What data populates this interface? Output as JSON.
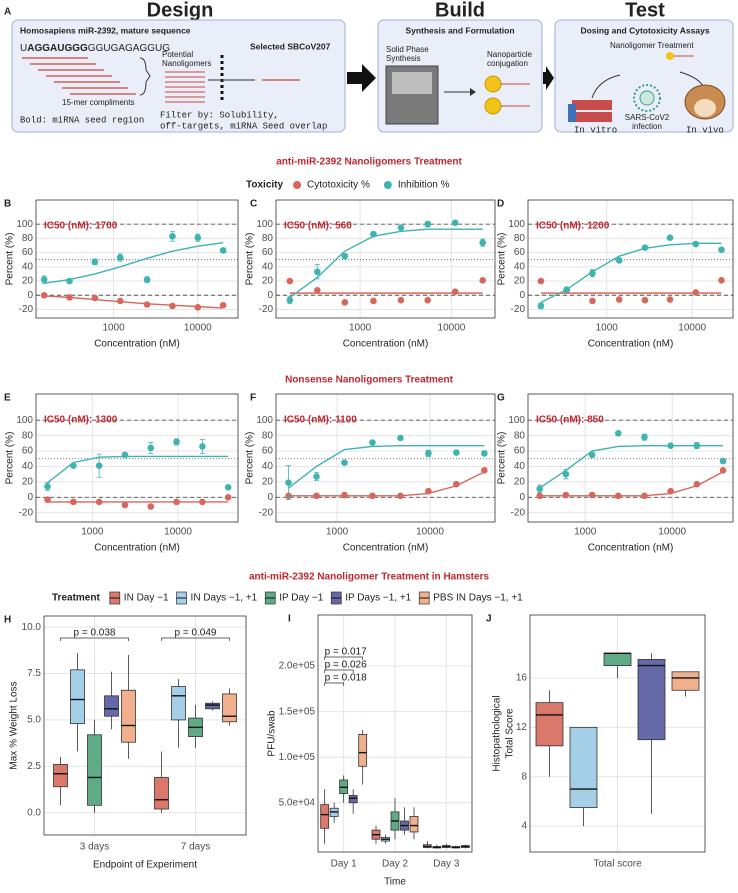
{
  "panel_a": {
    "panel": "A",
    "design": {
      "heading": "Design",
      "title": "Homosapiens miR-2392, mature sequence",
      "sequence": {
        "prefix": "U",
        "seed": "AGGAUGGG",
        "suffix": "GGUGAGAGGUG"
      },
      "compliments": "15-mer compliments",
      "note": "Bold: miRNA seed region",
      "potential": [
        "Potential",
        "Nanoligomers"
      ],
      "selected": "Selected SBCoV207",
      "filter": [
        "Filter by: Solubility,",
        "off-targets, miRNA Seed overlap"
      ]
    },
    "build": {
      "heading": "Build",
      "title": "Synthesis and Formulation",
      "synthesis": [
        "Solid Phase",
        "Synthesis"
      ],
      "conjugation": [
        "Nanoparticle",
        "conjugation"
      ]
    },
    "test": {
      "heading": "Test",
      "title": "Dosing and Cytotoxicity Assays",
      "treatment": "Nanoligomer Treatment",
      "in_vitro": "In vitro",
      "infection": [
        "SARS-CoV2",
        "infection"
      ],
      "in_vivo": "In vivo"
    }
  },
  "sections": [
    {
      "title": "anti-miR-2392 Nanoligomers Treatment",
      "legend_title": "Toxicity"
    },
    {
      "title": "Nonsense Nanoligomers Treatment"
    },
    {
      "title": "anti-miR-2392 Nanoligomer Treatment in Hamsters",
      "legend_title": "Treatment"
    }
  ],
  "chart_data": [
    {
      "type": "dose",
      "panel": "B",
      "ic50_label": "IC50 (nM): 1700",
      "x_label": "Concentration (nM)",
      "y_label": "Percent (%)",
      "log_x": true,
      "xlim": [
        120,
        30000
      ],
      "xticks": [
        1000,
        10000
      ],
      "ylim": [
        -32,
        134
      ],
      "yticks": [
        -20,
        0,
        20,
        40,
        60,
        80,
        100
      ],
      "reference_lines": [
        {
          "value": 0,
          "style": "dashed"
        },
        {
          "value": 50,
          "style": "dotted"
        },
        {
          "value": 100,
          "style": "dashed"
        }
      ],
      "x": [
        150,
        300,
        600,
        1200,
        2500,
        5000,
        10000,
        20000
      ],
      "series": [
        {
          "name": "Cytotoxicity %",
          "color": "#d9665b",
          "values": [
            0,
            -3,
            -4,
            -8,
            -13,
            -15,
            -17,
            -14
          ],
          "fit": [
            -1,
            -3,
            -6,
            -9,
            -12,
            -14,
            -16,
            -18
          ]
        },
        {
          "name": "Inhibition %",
          "color": "#3fb3b0",
          "values": [
            22,
            20,
            47,
            53,
            22,
            83,
            81,
            63
          ],
          "errors": [
            5,
            3,
            4,
            5,
            4,
            7,
            5,
            3
          ],
          "fit": [
            17,
            22,
            30,
            40,
            52,
            62,
            69,
            74
          ]
        }
      ]
    },
    {
      "type": "dose",
      "panel": "C",
      "ic50_label": "IC50 (nM): 560",
      "x_label": "Concentration (nM)",
      "y_label": "Percent (%)",
      "log_x": true,
      "xlim": [
        120,
        30000
      ],
      "xticks": [
        1000,
        10000
      ],
      "ylim": [
        -32,
        134
      ],
      "yticks": [
        -20,
        0,
        20,
        40,
        60,
        80,
        100
      ],
      "reference_lines": [
        {
          "value": 0,
          "style": "dashed"
        },
        {
          "value": 50,
          "style": "dotted"
        },
        {
          "value": 100,
          "style": "dashed"
        }
      ],
      "x": [
        170,
        340,
        680,
        1400,
        2800,
        5500,
        11000,
        22000
      ],
      "series": [
        {
          "name": "Cytotoxicity %",
          "color": "#d9665b",
          "values": [
            20,
            7,
            -10,
            -8,
            -7,
            -7,
            5,
            21
          ],
          "fit": [
            3,
            3,
            3,
            3,
            3,
            3,
            3,
            3
          ]
        },
        {
          "name": "Inhibition %",
          "color": "#3fb3b0",
          "values": [
            -7,
            33,
            55,
            86,
            95,
            100,
            102,
            74
          ],
          "errors": [
            5,
            10,
            3,
            3,
            2,
            4,
            2,
            5
          ],
          "fit": [
            -3,
            25,
            62,
            83,
            90,
            93,
            93,
            93
          ]
        }
      ]
    },
    {
      "type": "dose",
      "panel": "D",
      "ic50_label": "IC50 (nM): 1200",
      "x_label": "Concentration (nM)",
      "y_label": "Percent (%)",
      "log_x": true,
      "xlim": [
        120,
        30000
      ],
      "xticks": [
        1000,
        10000
      ],
      "ylim": [
        -32,
        134
      ],
      "yticks": [
        -20,
        0,
        20,
        40,
        60,
        80,
        100
      ],
      "reference_lines": [
        {
          "value": 0,
          "style": "dashed"
        },
        {
          "value": 50,
          "style": "dotted"
        },
        {
          "value": 100,
          "style": "dashed"
        }
      ],
      "x": [
        170,
        340,
        680,
        1400,
        2800,
        5500,
        11000,
        22000
      ],
      "series": [
        {
          "name": "Cytotoxicity %",
          "color": "#d9665b",
          "values": [
            20,
            7,
            -8,
            -6,
            -7,
            -6,
            4,
            21
          ],
          "fit": [
            3,
            3,
            3,
            3,
            3,
            3,
            3,
            3
          ]
        },
        {
          "name": "Inhibition %",
          "color": "#3fb3b0",
          "values": [
            -15,
            8,
            31,
            49,
            67,
            81,
            72,
            64
          ],
          "errors": [
            4,
            2,
            5,
            3,
            3,
            2,
            2,
            2
          ],
          "fit": [
            -10,
            8,
            33,
            55,
            66,
            71,
            73,
            73
          ]
        }
      ]
    },
    {
      "type": "dose",
      "panel": "E",
      "ic50_label": "IC50 (nM): 1300",
      "x_label": "Concentration (nM)",
      "y_label": "Percent (%)",
      "log_x": true,
      "xlim": [
        220,
        50000
      ],
      "xticks": [
        1000,
        10000
      ],
      "ylim": [
        -32,
        134
      ],
      "yticks": [
        -20,
        0,
        20,
        40,
        60,
        80,
        100
      ],
      "reference_lines": [
        {
          "value": 0,
          "style": "dashed"
        },
        {
          "value": 50,
          "style": "dotted"
        },
        {
          "value": 100,
          "style": "dashed"
        }
      ],
      "x": [
        300,
        600,
        1200,
        2400,
        4800,
        9600,
        19200,
        38400
      ],
      "series": [
        {
          "name": "Cytotoxicity %",
          "color": "#d9665b",
          "values": [
            -3,
            -6,
            -6,
            -10,
            -12,
            -6,
            -6,
            0
          ],
          "fit": [
            -6,
            -6,
            -6,
            -6,
            -6,
            -6,
            -6,
            -6
          ]
        },
        {
          "name": "Inhibition %",
          "color": "#3fb3b0",
          "values": [
            14,
            41,
            41,
            55,
            64,
            72,
            66,
            13
          ],
          "errors": [
            5,
            2,
            15,
            3,
            7,
            4,
            9,
            2
          ],
          "fit": [
            19,
            45,
            52,
            53,
            53,
            53,
            53,
            53
          ]
        }
      ]
    },
    {
      "type": "dose",
      "panel": "F",
      "ic50_label": "IC50 (nM): 1100",
      "x_label": "Concentration (nM)",
      "y_label": "Percent (%)",
      "log_x": true,
      "xlim": [
        220,
        50000
      ],
      "xticks": [
        1000,
        10000
      ],
      "ylim": [
        -32,
        134
      ],
      "yticks": [
        -20,
        0,
        20,
        40,
        60,
        80,
        100
      ],
      "reference_lines": [
        {
          "value": 0,
          "style": "dashed"
        },
        {
          "value": 50,
          "style": "dotted"
        },
        {
          "value": 100,
          "style": "dashed"
        }
      ],
      "x": [
        300,
        600,
        1200,
        2400,
        4800,
        9600,
        19200,
        38400
      ],
      "series": [
        {
          "name": "Cytotoxicity %",
          "color": "#d9665b",
          "values": [
            2,
            2,
            3,
            2,
            2,
            8,
            17,
            35
          ],
          "fit": [
            2,
            2,
            2,
            2,
            2,
            5,
            15,
            33
          ]
        },
        {
          "name": "Inhibition %",
          "color": "#3fb3b0",
          "values": [
            19,
            27,
            45,
            71,
            77,
            57,
            58,
            57
          ],
          "errors": [
            22,
            5,
            2,
            2,
            2,
            4,
            2,
            3
          ],
          "fit": [
            12,
            40,
            62,
            66,
            67,
            67,
            67,
            67
          ]
        }
      ]
    },
    {
      "type": "dose",
      "panel": "G",
      "ic50_label": "IC50 (nM): 850",
      "x_label": "Concentration (nM)",
      "y_label": "Percent (%)",
      "log_x": true,
      "xlim": [
        220,
        50000
      ],
      "xticks": [
        1000,
        10000
      ],
      "ylim": [
        -32,
        134
      ],
      "yticks": [
        -20,
        0,
        20,
        40,
        60,
        80,
        100
      ],
      "reference_lines": [
        {
          "value": 0,
          "style": "dashed"
        },
        {
          "value": 50,
          "style": "dotted"
        },
        {
          "value": 100,
          "style": "dashed"
        }
      ],
      "x": [
        300,
        600,
        1200,
        2400,
        4800,
        9600,
        19200,
        38400
      ],
      "series": [
        {
          "name": "Cytotoxicity %",
          "color": "#d9665b",
          "values": [
            2,
            3,
            3,
            2,
            2,
            8,
            17,
            35
          ],
          "fit": [
            2,
            2,
            2,
            2,
            2,
            5,
            15,
            33
          ]
        },
        {
          "name": "Inhibition %",
          "color": "#3fb3b0",
          "values": [
            11,
            30,
            55,
            83,
            78,
            67,
            67,
            47
          ],
          "errors": [
            5,
            6,
            2,
            2,
            4,
            2,
            4,
            3
          ],
          "fit": [
            12,
            35,
            60,
            66,
            67,
            67,
            67,
            67
          ]
        }
      ]
    },
    {
      "type": "box",
      "panel": "H",
      "x_label": "Endpoint of Experiment",
      "y_label": [
        "Max % Weight Loss"
      ],
      "ylim": [
        -1.2,
        10.6
      ],
      "yticks": [
        {
          "value": 0,
          "label": "0.0"
        },
        {
          "value": 2.5,
          "label": "2.5"
        },
        {
          "value": 5,
          "label": "5.0"
        },
        {
          "value": 7.5,
          "label": "7.5"
        },
        {
          "value": 10,
          "label": "10.0"
        }
      ],
      "categories": [
        "3 days",
        "7 days"
      ],
      "annotations": [
        "p = 0.038",
        "p = 0.049"
      ],
      "series": [
        {
          "name": "IN Day −1",
          "color": "#d9786b",
          "values": [
            [
              0.4,
              1.4,
              2.1,
              2.6,
              3.0
            ],
            [
              0,
              0.2,
              0.7,
              1.9,
              3.3
            ]
          ]
        },
        {
          "name": "IN Days −1, +1",
          "color": "#a4cfe6",
          "values": [
            [
              3.3,
              4.8,
              6.1,
              7.7,
              8.6
            ],
            [
              3.5,
              5.0,
              6.3,
              6.8,
              7.2
            ]
          ]
        },
        {
          "name": "IP Day −1",
          "color": "#5fab87",
          "values": [
            [
              0,
              0.4,
              1.9,
              4.2,
              5.0
            ],
            [
              3.5,
              4.1,
              4.6,
              5.1,
              5.8
            ]
          ]
        },
        {
          "name": "IP Days −1, +1",
          "color": "#6669a8",
          "values": [
            [
              4.5,
              5.2,
              5.6,
              6.3,
              7.6
            ],
            [
              5.5,
              5.6,
              5.8,
              5.9,
              6.0
            ]
          ]
        },
        {
          "name": "PBS IN Days −1, +1",
          "color": "#f0b08d",
          "values": [
            [
              2.9,
              3.8,
              4.7,
              6.6,
              8.5
            ],
            [
              4.7,
              4.9,
              5.2,
              6.4,
              6.7
            ]
          ]
        }
      ]
    },
    {
      "type": "box",
      "panel": "I",
      "x_label": "Time",
      "y_label": [
        "PFU/swab"
      ],
      "ylim": [
        -4000,
        256000
      ],
      "yticks": [
        {
          "value": 50000,
          "label": "5.0e+04"
        },
        {
          "value": 100000,
          "label": "1.0e+05"
        },
        {
          "value": 150000,
          "label": "1.5e+05"
        },
        {
          "value": 200000,
          "label": "2.0e+05"
        }
      ],
      "categories": [
        "Day 1",
        "Day 2",
        "Day 3"
      ],
      "annotations": [
        "p = 0.017",
        "p = 0.026",
        "p = 0.018"
      ],
      "series": [
        {
          "name": "IN Day −1",
          "color": "#d9786b",
          "values": [
            [
              5000,
              22000,
              37000,
              48000,
              65000
            ],
            [
              5000,
              10000,
              15000,
              20000,
              25000
            ],
            [
              0,
              1000,
              2000,
              4000,
              8000
            ]
          ]
        },
        {
          "name": "IN Days −1, +1",
          "color": "#a4cfe6",
          "values": [
            [
              28000,
              35000,
              40000,
              44000,
              50000
            ],
            [
              5000,
              8000,
              10000,
              12000,
              15000
            ],
            [
              0,
              500,
              1000,
              2000,
              4000
            ]
          ]
        },
        {
          "name": "IP Day −1",
          "color": "#5fab87",
          "values": [
            [
              50000,
              60000,
              67000,
              75000,
              80000
            ],
            [
              10000,
              20000,
              30000,
              40000,
              55000
            ],
            [
              0,
              1000,
              2000,
              3000,
              5000
            ]
          ]
        },
        {
          "name": "IP Days −1, +1",
          "color": "#6669a8",
          "values": [
            [
              38000,
              50000,
              55000,
              58000,
              65000
            ],
            [
              15000,
              20000,
              25000,
              30000,
              45000
            ],
            [
              0,
              500,
              1000,
              2000,
              3000
            ]
          ]
        },
        {
          "name": "PBS IN Days −1, +1",
          "color": "#f0b08d",
          "values": [
            [
              70000,
              90000,
              105000,
              125000,
              130000
            ],
            [
              10000,
              18000,
              25000,
              35000,
              45000
            ],
            [
              0,
              1000,
              2000,
              3000,
              4000
            ]
          ]
        }
      ]
    },
    {
      "type": "box",
      "panel": "J",
      "y_label": [
        "Histopathological",
        "Total Score"
      ],
      "ylim": [
        1.9,
        21.1
      ],
      "yticks": [
        4,
        8,
        12,
        16
      ],
      "categories": [
        "Total score"
      ],
      "series": [
        {
          "name": "IN Day −1",
          "color": "#d9786b",
          "values": [
            [
              8,
              10.5,
              13,
              14,
              15
            ]
          ]
        },
        {
          "name": "IN Days −1, +1",
          "color": "#a4cfe6",
          "values": [
            [
              4,
              5.5,
              7,
              12,
              12
            ]
          ]
        },
        {
          "name": "IP Day −1",
          "color": "#5fab87",
          "values": [
            [
              16,
              17,
              18,
              18,
              18
            ]
          ]
        },
        {
          "name": "IP Days −1, +1",
          "color": "#6669a8",
          "values": [
            [
              5,
              11,
              17,
              17.5,
              18
            ]
          ]
        },
        {
          "name": "PBS IN Days −1, +1",
          "color": "#f0b08d",
          "values": [
            [
              14.5,
              15,
              16,
              16.5,
              16.5
            ]
          ]
        }
      ]
    }
  ]
}
